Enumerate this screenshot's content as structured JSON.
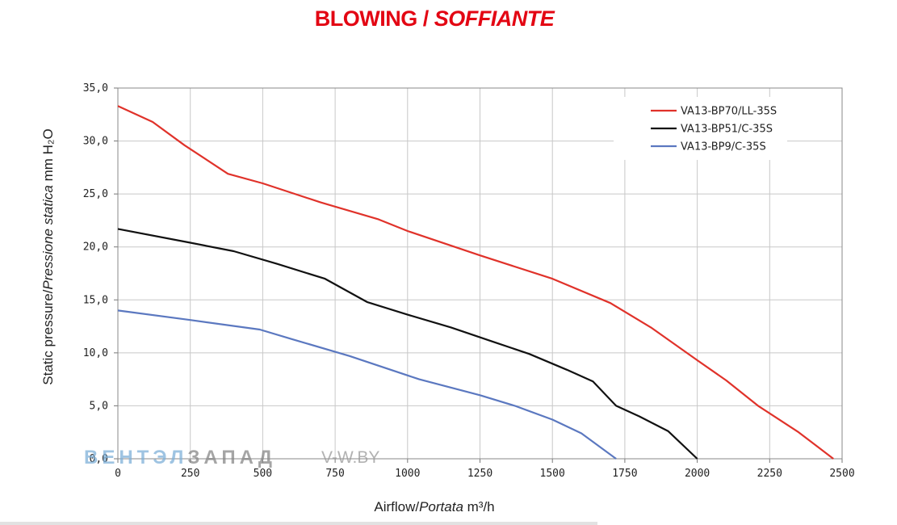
{
  "title_main": "BLOWING / ",
  "title_italic": "SOFFIANTE",
  "y_label_main": "Static pressure/",
  "y_label_italic": "Pressione statica",
  "y_label_unit": "mm H₂O",
  "x_label_main": "Airflow/",
  "x_label_italic": "Portata",
  "x_label_unit": "m³/h",
  "watermark_blue": "ВЕНТЭЛ",
  "watermark_gray": "ЗАПАД",
  "watermark_url": "V-W.BY",
  "chart_data": {
    "type": "line",
    "xlim": [
      0,
      2500
    ],
    "ylim": [
      0,
      35
    ],
    "x_ticks": [
      "0",
      "250",
      "500",
      "750",
      "1000",
      "1250",
      "1500",
      "1750",
      "2000",
      "2250",
      "2500"
    ],
    "y_ticks": [
      "0,0",
      "5,0",
      "10,0",
      "15,0",
      "20,0",
      "25,0",
      "30,0",
      "35,0"
    ],
    "grid": true,
    "legend_position": "top-right",
    "series": [
      {
        "name": "VA13-BP70/LL-35S",
        "color": "#e0322a",
        "points": [
          [
            0,
            33.3
          ],
          [
            120,
            31.8
          ],
          [
            230,
            29.6
          ],
          [
            380,
            26.9
          ],
          [
            500,
            26.0
          ],
          [
            700,
            24.2
          ],
          [
            900,
            22.6
          ],
          [
            1000,
            21.5
          ],
          [
            1250,
            19.2
          ],
          [
            1500,
            17.0
          ],
          [
            1700,
            14.7
          ],
          [
            1840,
            12.4
          ],
          [
            2000,
            9.3
          ],
          [
            2100,
            7.4
          ],
          [
            2210,
            5.0
          ],
          [
            2350,
            2.5
          ],
          [
            2470,
            0.0
          ]
        ]
      },
      {
        "name": "VA13-BP51/C-35S",
        "color": "#111111",
        "points": [
          [
            0,
            21.7
          ],
          [
            250,
            20.4
          ],
          [
            400,
            19.6
          ],
          [
            550,
            18.4
          ],
          [
            715,
            17.0
          ],
          [
            860,
            14.8
          ],
          [
            1000,
            13.6
          ],
          [
            1150,
            12.4
          ],
          [
            1300,
            11.0
          ],
          [
            1420,
            9.9
          ],
          [
            1550,
            8.4
          ],
          [
            1640,
            7.3
          ],
          [
            1720,
            5.0
          ],
          [
            1800,
            4.0
          ],
          [
            1900,
            2.6
          ],
          [
            2000,
            0.0
          ]
        ]
      },
      {
        "name": "VA13-BP9/C-35S",
        "color": "#5b78c0",
        "points": [
          [
            0,
            14.0
          ],
          [
            250,
            13.1
          ],
          [
            490,
            12.2
          ],
          [
            600,
            11.3
          ],
          [
            800,
            9.7
          ],
          [
            1040,
            7.5
          ],
          [
            1250,
            6.0
          ],
          [
            1370,
            5.0
          ],
          [
            1500,
            3.7
          ],
          [
            1600,
            2.4
          ],
          [
            1720,
            0.0
          ]
        ]
      }
    ]
  }
}
